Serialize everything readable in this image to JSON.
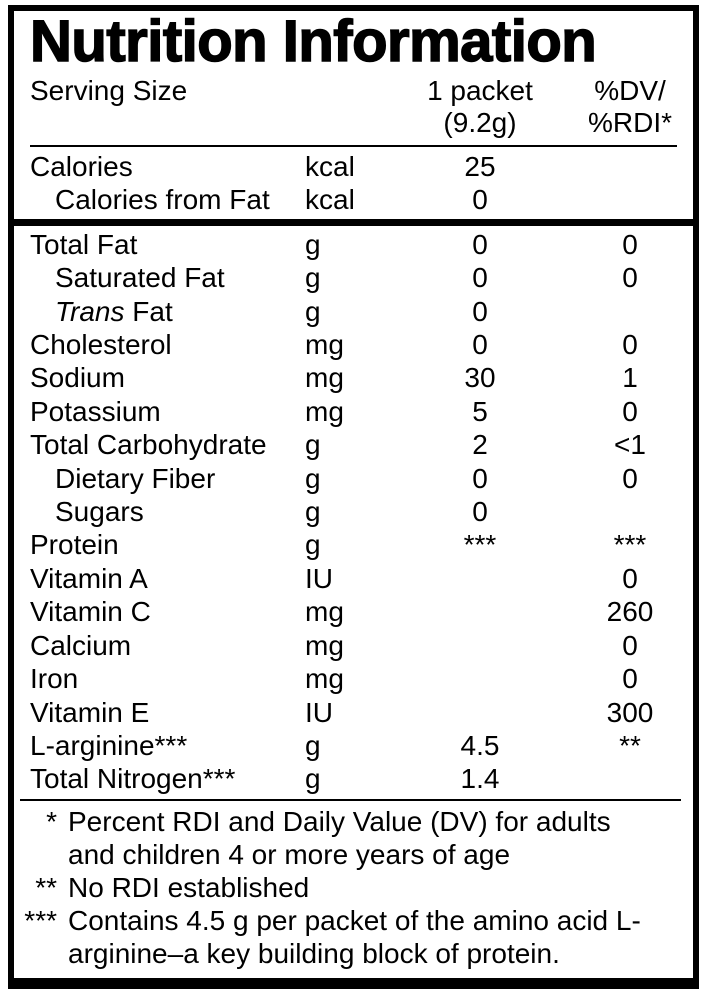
{
  "label": {
    "title": "Nutrition Information",
    "header": {
      "serving_size_label": "Serving Size",
      "amount_line1": "1 packet",
      "amount_line2": "(9.2g)",
      "dv_line1": "%DV/",
      "dv_line2": "%RDI*"
    },
    "rows_calories": [
      {
        "name": "Calories",
        "unit": "kcal",
        "amount": "25",
        "dv": "",
        "indent": false
      },
      {
        "name": "Calories from Fat",
        "unit": "kcal",
        "amount": "0",
        "dv": "",
        "indent": true
      }
    ],
    "rows_nutrients": [
      {
        "name": "Total Fat",
        "unit": "g",
        "amount": "0",
        "dv": "0",
        "indent": false
      },
      {
        "name": "Saturated Fat",
        "unit": "g",
        "amount": "0",
        "dv": "0",
        "indent": true
      },
      {
        "italic": "Trans",
        "name": " Fat",
        "unit": "g",
        "amount": "0",
        "dv": "",
        "indent": true
      },
      {
        "name": "Cholesterol",
        "unit": "mg",
        "amount": "0",
        "dv": "0",
        "indent": false
      },
      {
        "name": "Sodium",
        "unit": "mg",
        "amount": "30",
        "dv": "1",
        "indent": false
      },
      {
        "name": "Potassium",
        "unit": "mg",
        "amount": "5",
        "dv": "0",
        "indent": false
      },
      {
        "name": "Total Carbohydrate",
        "unit": "g",
        "amount": "2",
        "dv": "<1",
        "indent": false
      },
      {
        "name": "Dietary Fiber",
        "unit": "g",
        "amount": "0",
        "dv": "0",
        "indent": true
      },
      {
        "name": "Sugars",
        "unit": "g",
        "amount": "0",
        "dv": "",
        "indent": true
      },
      {
        "name": "Protein",
        "unit": "g",
        "amount": "***",
        "dv": "***",
        "indent": false
      },
      {
        "name": "Vitamin A",
        "unit": "IU",
        "amount": "",
        "dv": "0",
        "indent": false
      },
      {
        "name": "Vitamin C",
        "unit": "mg",
        "amount": "",
        "dv": "260",
        "indent": false
      },
      {
        "name": "Calcium",
        "unit": "mg",
        "amount": "",
        "dv": "0",
        "indent": false
      },
      {
        "name": "Iron",
        "unit": "mg",
        "amount": "",
        "dv": "0",
        "indent": false
      },
      {
        "name": "Vitamin E",
        "unit": "IU",
        "amount": "",
        "dv": "300",
        "indent": false
      },
      {
        "name": "L-arginine***",
        "unit": "g",
        "amount": "4.5",
        "dv": "**",
        "indent": false
      },
      {
        "name": "Total Nitrogen***",
        "unit": "g",
        "amount": "1.4",
        "dv": "",
        "indent": false
      }
    ],
    "footnotes": [
      {
        "symbol": "*",
        "text": "Percent RDI and Daily Value (DV) for adults and children 4 or more years of age"
      },
      {
        "symbol": "**",
        "text": "No RDI established"
      },
      {
        "symbol": "***",
        "text": "Contains 4.5 g per packet of the amino acid L-arginine–a key building block of protein."
      }
    ],
    "colors": {
      "text": "#000000",
      "background": "#ffffff",
      "border": "#000000"
    }
  }
}
